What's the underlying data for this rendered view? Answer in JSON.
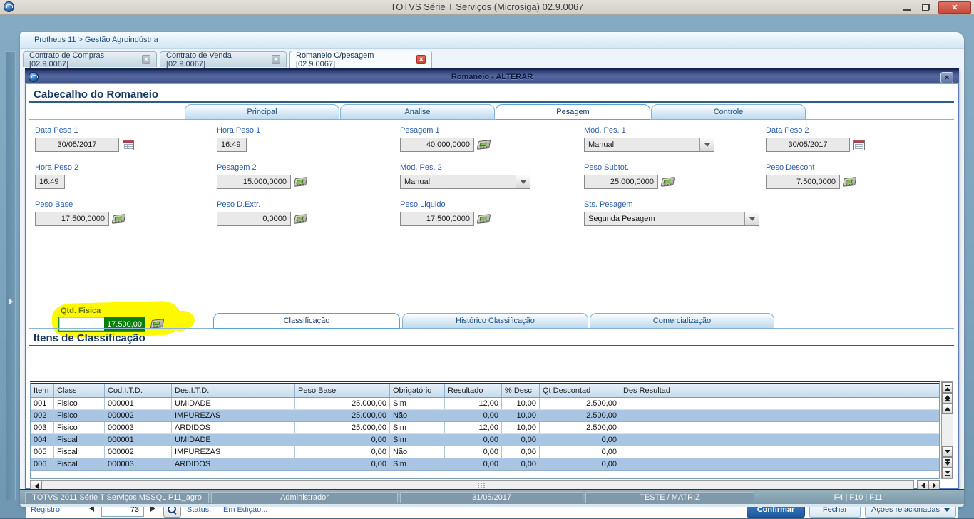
{
  "window": {
    "title": "TOTVS Série T Serviços (Microsiga) 02.9.0067"
  },
  "breadcrumb": "Protheus 11 > Gestão Agroindústria",
  "mdi_tabs": [
    {
      "label": "Contrato de Compras [02.9.0067]"
    },
    {
      "label": "Contrato de Venda [02.9.0067]"
    },
    {
      "label": "Romaneio C/pesagem [02.9.0067]"
    }
  ],
  "dialog": {
    "title": "Romaneio - ALTERAR",
    "section_header": "Cabecalho do Romaneio",
    "tabs": {
      "principal": "Principal",
      "analise": "Analise",
      "pesagem": "Pesagem",
      "controle": "Controle"
    },
    "fields": [
      {
        "label": "Data Peso 1",
        "value": "30/05/2017"
      },
      {
        "label": "Hora Peso 1",
        "value": "16:49"
      },
      {
        "label": "Pesagem 1",
        "value": "40.000,0000"
      },
      {
        "label": "Mod. Pes. 1",
        "value": "Manual"
      },
      {
        "label": "Data Peso 2",
        "value": "30/05/2017"
      },
      {
        "label": "Hora Peso 2",
        "value": "16:49"
      },
      {
        "label": "Pesagem 2",
        "value": "15.000,0000"
      },
      {
        "label": "Mod. Pes. 2",
        "value": "Manual"
      },
      {
        "label": "Peso Subtot.",
        "value": "25.000,0000"
      },
      {
        "label": "Peso Descont",
        "value": "7.500,0000"
      },
      {
        "label": "Peso Base",
        "value": "17.500,0000"
      },
      {
        "label": "Peso D.Extr.",
        "value": "0,0000"
      },
      {
        "label": "Peso Liquido",
        "value": "17.500,0000"
      },
      {
        "label": "Sts. Pesagem",
        "value": "Segunda Pesagem"
      },
      {
        "label": "Qtd. Fisica",
        "value": "17.500,00"
      }
    ],
    "bottom_tabs": {
      "classificacao": "Classificação",
      "historico": "Histórico Classificação",
      "comercializacao": "Comercialização"
    },
    "items_section": "Itens de Classificação",
    "table": {
      "columns": [
        "Item",
        "Class",
        "Cod.I.T.D.",
        "Des.I.T.D.",
        "Peso Base",
        "Obrigatório",
        "Resultado",
        "% Desc",
        "Qt Descontad",
        "Des Resultad"
      ],
      "rows": [
        [
          "001",
          "Fisico",
          "000001",
          "UMIDADE",
          "25.000,00",
          "Sim",
          "12,00",
          "10,00",
          "2.500,00",
          ""
        ],
        [
          "002",
          "Fisico",
          "000002",
          "IMPUREZAS",
          "25.000,00",
          "Não",
          "0,00",
          "10,00",
          "2.500,00",
          ""
        ],
        [
          "003",
          "Fisico",
          "000003",
          "ARDIDOS",
          "25.000,00",
          "Sim",
          "12,00",
          "10,00",
          "2.500,00",
          ""
        ],
        [
          "004",
          "Fiscal",
          "000001",
          "UMIDADE",
          "0,00",
          "Sim",
          "0,00",
          "0,00",
          "0,00",
          ""
        ],
        [
          "005",
          "Fiscal",
          "000002",
          "IMPUREZAS",
          "0,00",
          "Não",
          "0,00",
          "0,00",
          "0,00",
          ""
        ],
        [
          "006",
          "Fiscal",
          "000003",
          "ARDIDOS",
          "0,00",
          "Sim",
          "0,00",
          "0,00",
          "0,00",
          ""
        ]
      ]
    },
    "footer": {
      "registro_label": "Registro:",
      "registro_value": "73",
      "status_label": "Status:",
      "status_value": "Em Edição...",
      "confirm_label": "Confirmar",
      "close_label": "Fechar",
      "actions_label": "Ações relacionadas"
    }
  },
  "statusbar": {
    "segments": [
      "TOTVS 2011 Série T Serviços MSSQL P11_agro",
      "Administrador",
      "31/05/2017",
      "TESTE / MATRIZ",
      "F4 | F10 | F11"
    ]
  },
  "icons": {
    "close_x": "✕"
  },
  "colors": {
    "accent_blue": "#1f4e79",
    "confirm_blue": "#2465a5",
    "highlight_yellow": "#fef800",
    "selection_green": "#0b7d0b",
    "close_red": "#c74a3c"
  }
}
